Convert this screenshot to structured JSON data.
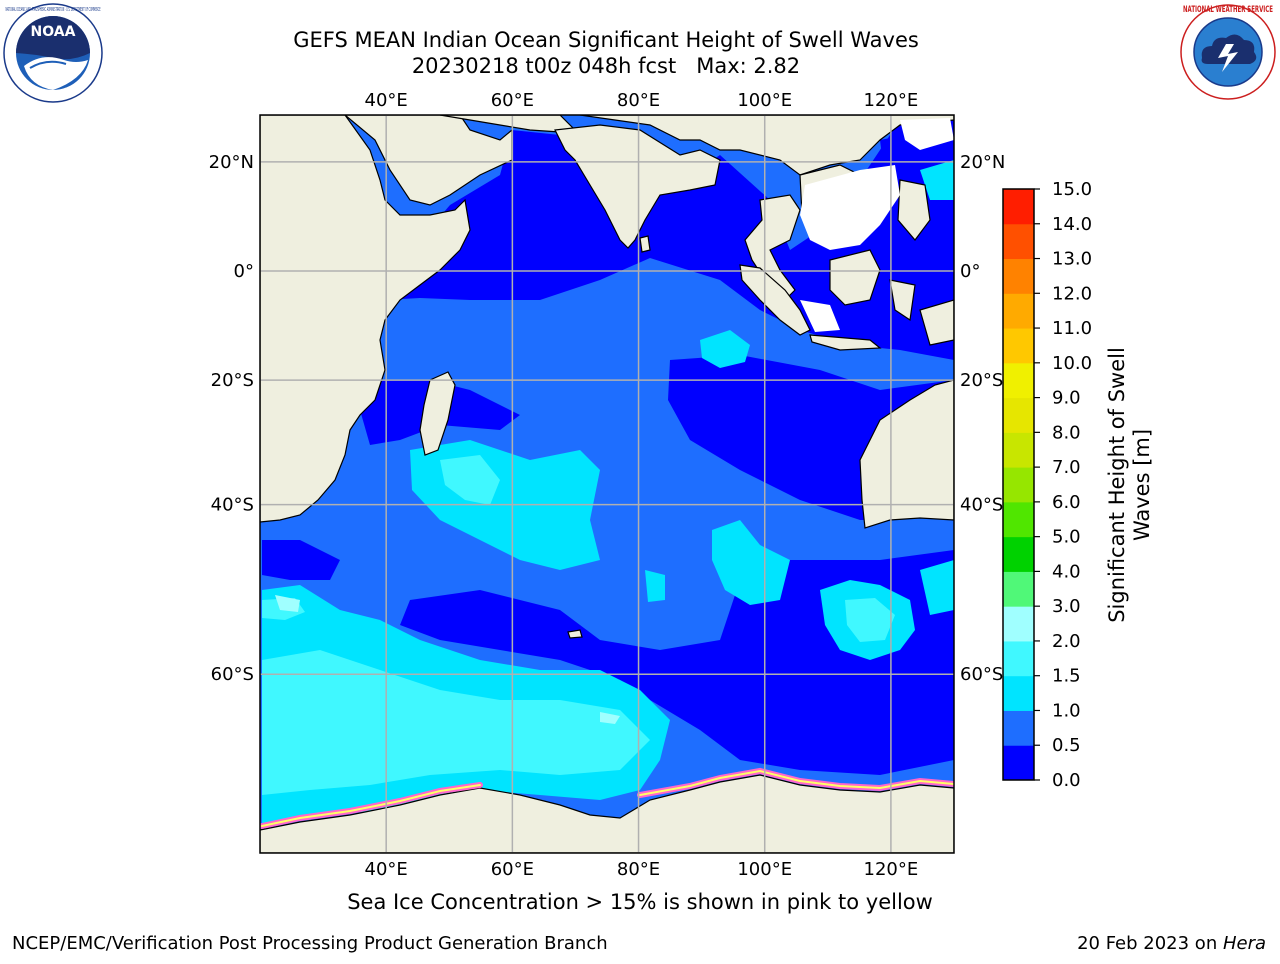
{
  "header": {
    "title_line1": "GEFS MEAN Indian Ocean Significant Height of Swell Waves",
    "title_line2": "20230218 t00z 048h fcst   Max: 2.82"
  },
  "logos": {
    "left": {
      "text": "NOAA",
      "icon": "noaa-logo-icon",
      "ring_text": "NATIONAL OCEANIC AND ATMOSPHERIC ADMINISTRATION · U.S. DEPARTMENT OF COMMERCE"
    },
    "right": {
      "icon": "nws-logo-icon",
      "ring_text": "NATIONAL WEATHER SERVICE"
    }
  },
  "map": {
    "lon_ticks": [
      "40°E",
      "60°E",
      "80°E",
      "100°E",
      "120°E"
    ],
    "lat_ticks_left": [
      "20°N",
      "0°",
      "20°S",
      "40°S",
      "60°S"
    ],
    "lat_ticks_right": [
      "20°N",
      "0°",
      "20°S",
      "40°S",
      "60°S"
    ],
    "lon_values": [
      40,
      60,
      80,
      100,
      120
    ],
    "lat_values": [
      20,
      0,
      -20,
      -40,
      -60
    ],
    "lon_range": [
      20,
      130
    ],
    "lat_range": [
      -73,
      28
    ],
    "colors": {
      "land": "#efefdf",
      "gridline": "#b0b0b0",
      "wave_0_0_5": "#0000ff",
      "wave_0_5_1_0": "#1e6eff",
      "wave_1_0_1_5": "#00e4ff",
      "wave_1_5_2_0": "#40f8ff",
      "wave_2_0_3_0": "#a0ffff",
      "no_data": "#ffffff",
      "sea_ice_low": "#ff66cc",
      "sea_ice_high": "#ffff66"
    }
  },
  "colorbar": {
    "label_line1": "Significant Height of Swell",
    "label_line2": "Waves [m]",
    "ticks": [
      "0.0",
      "0.5",
      "1.0",
      "1.5",
      "2.0",
      "3.0",
      "4.0",
      "5.0",
      "6.0",
      "7.0",
      "8.0",
      "9.0",
      "10.0",
      "11.0",
      "12.0",
      "13.0",
      "14.0",
      "15.0"
    ],
    "colors": [
      "#0000ff",
      "#1e6eff",
      "#00e4ff",
      "#40f8ff",
      "#a0ffff",
      "#50f878",
      "#00d200",
      "#50e600",
      "#96e600",
      "#c8e600",
      "#e6e600",
      "#f0f000",
      "#ffc800",
      "#ffaa00",
      "#ff8200",
      "#ff5000",
      "#ff1e00"
    ]
  },
  "caption": "Sea Ice Concentration > 15% is shown in pink to yellow",
  "footer": {
    "left": "NCEP/EMC/Verification Post Processing Product Generation Branch",
    "right_prefix": "20 Feb 2023 on ",
    "right_host": "Hera"
  }
}
